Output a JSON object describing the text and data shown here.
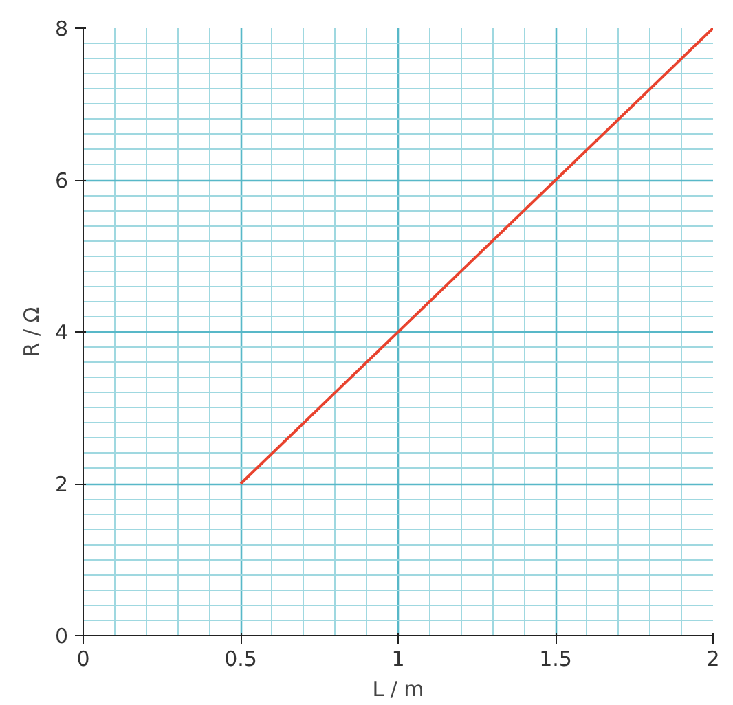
{
  "chart_data": {
    "type": "line",
    "xlabel": "L / m",
    "ylabel": "R / Ω",
    "x": [
      0.5,
      2
    ],
    "series": [
      {
        "color": "#e8432e",
        "values": [
          2,
          8
        ]
      }
    ],
    "xlim": [
      0,
      2
    ],
    "ylim": [
      0,
      8
    ],
    "xticks": [
      0,
      0.5,
      1,
      1.5,
      2
    ],
    "yticks": [
      0,
      2,
      4,
      6,
      8
    ],
    "grid": true,
    "marker": "none",
    "line_style": "solid"
  }
}
